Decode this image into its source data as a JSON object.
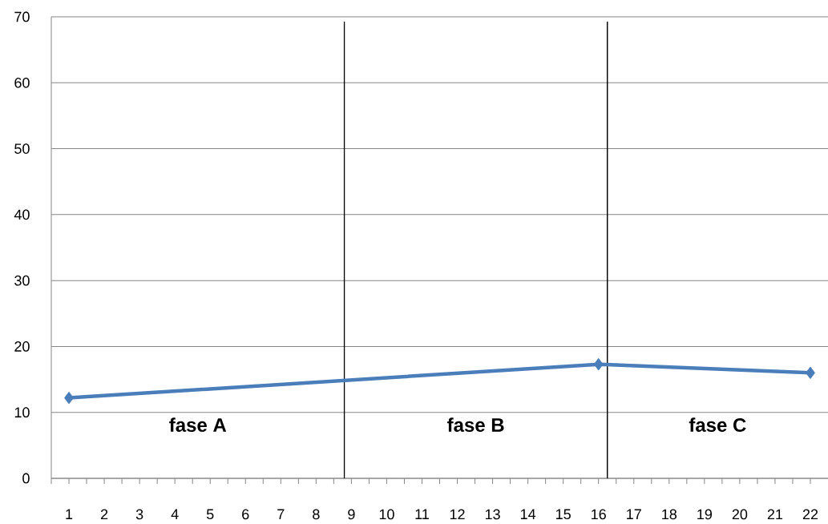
{
  "chart_data": {
    "type": "line",
    "x": [
      1,
      16,
      22
    ],
    "values": [
      12.2,
      17.3,
      16.0
    ],
    "color": "#4a7ebb",
    "marker": "diamond",
    "xlim": [
      0.5,
      22.5
    ],
    "xticks": [
      1,
      2,
      3,
      4,
      5,
      6,
      7,
      8,
      9,
      10,
      11,
      12,
      13,
      14,
      15,
      16,
      17,
      18,
      19,
      20,
      21,
      22,
      {
        "value": 0.5,
        "label": null
      },
      {
        "value": 1.5,
        "label": null
      },
      {
        "value": 2.5,
        "label": null
      },
      {
        "value": 3.5,
        "label": null
      },
      {
        "value": 4.5,
        "label": null
      },
      {
        "value": 5.5,
        "label": null
      },
      {
        "value": 6.5,
        "label": null
      },
      {
        "value": 7.5,
        "label": null
      },
      {
        "value": 8.5,
        "label": null
      },
      {
        "value": 9.5,
        "label": null
      },
      {
        "value": 10.5,
        "label": null
      },
      {
        "value": 11.5,
        "label": null
      },
      {
        "value": 12.5,
        "label": null
      },
      {
        "value": 13.5,
        "label": null
      },
      {
        "value": 14.5,
        "label": null
      },
      {
        "value": 15.5,
        "label": null
      },
      {
        "value": 16.5,
        "label": null
      },
      {
        "value": 17.5,
        "label": null
      },
      {
        "value": 18.5,
        "label": null
      },
      {
        "value": 19.5,
        "label": null
      },
      {
        "value": 20.5,
        "label": null
      },
      {
        "value": 21.5,
        "label": null
      }
    ],
    "ylim": [
      0,
      70
    ],
    "yticks": [
      0,
      10,
      20,
      30,
      40,
      50,
      60,
      70
    ],
    "grid": "y",
    "ref_lines": [
      {
        "axis": "x",
        "value": 8.8,
        "color": "#000000"
      },
      {
        "axis": "x",
        "value": 16.25,
        "color": "#000000"
      }
    ],
    "annotations": [
      "fase A",
      "fase B",
      "fase C"
    ]
  }
}
